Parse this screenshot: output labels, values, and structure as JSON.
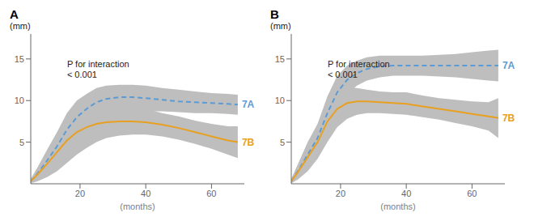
{
  "chart_data": [
    {
      "type": "line",
      "title": "A",
      "y_label": "(mm)",
      "x_label": "(months)",
      "annotation": "P for interaction\n< 0.001",
      "grid": false,
      "x": [
        5,
        7,
        10,
        13,
        16,
        19,
        22,
        25,
        28,
        32,
        36,
        40,
        45,
        50,
        55,
        60,
        65,
        68
      ],
      "xlim": [
        5,
        70
      ],
      "ylim": [
        0,
        18
      ],
      "xticks": [
        20,
        40,
        60
      ],
      "yticks": [
        5,
        10,
        15
      ],
      "series": [
        {
          "name": "7A",
          "color": "#5B9BD5",
          "line_style": "dashed",
          "ci_color": "#BEBEBE",
          "values": [
            0.3,
            1.2,
            2.8,
            4.5,
            6.5,
            8.0,
            9.0,
            9.8,
            10.2,
            10.4,
            10.4,
            10.3,
            10.1,
            9.9,
            9.8,
            9.7,
            9.6,
            9.5
          ],
          "ci_lo": [
            0.1,
            0.5,
            1.5,
            2.8,
            4.5,
            6.0,
            7.2,
            8.0,
            8.4,
            8.6,
            8.7,
            8.7,
            8.7,
            8.6,
            8.5,
            8.5,
            8.4,
            8.3
          ],
          "ci_hi": [
            0.5,
            1.9,
            4.1,
            6.2,
            8.5,
            10.0,
            10.8,
            11.5,
            11.8,
            11.9,
            11.9,
            11.8,
            11.5,
            11.3,
            11.1,
            10.9,
            10.8,
            10.7
          ]
        },
        {
          "name": "7B",
          "color": "#E8A020",
          "line_style": "solid",
          "ci_color": "#BEBEBE",
          "values": [
            0.3,
            1.1,
            2.4,
            3.8,
            5.2,
            6.2,
            6.8,
            7.2,
            7.4,
            7.5,
            7.5,
            7.4,
            7.1,
            6.7,
            6.2,
            5.7,
            5.2,
            5.0
          ],
          "ci_lo": [
            0.05,
            0.3,
            0.8,
            1.5,
            2.5,
            3.5,
            4.3,
            5.0,
            5.5,
            5.8,
            5.9,
            5.9,
            5.7,
            5.3,
            4.8,
            4.2,
            3.5,
            3.1
          ],
          "ci_hi": [
            0.6,
            1.9,
            4.0,
            6.1,
            7.9,
            8.9,
            9.3,
            9.4,
            9.3,
            9.2,
            9.1,
            9.0,
            8.5,
            8.1,
            7.6,
            7.2,
            6.9,
            6.9
          ]
        }
      ]
    },
    {
      "type": "line",
      "title": "B",
      "y_label": "(mm)",
      "x_label": "(months)",
      "annotation": "P for interaction\n< 0.001",
      "grid": false,
      "x": [
        5,
        7,
        10,
        13,
        16,
        19,
        22,
        25,
        28,
        32,
        36,
        40,
        45,
        50,
        55,
        60,
        65,
        68
      ],
      "xlim": [
        5,
        70
      ],
      "ylim": [
        0,
        18
      ],
      "xticks": [
        20,
        40,
        60
      ],
      "yticks": [
        5,
        10,
        15
      ],
      "series": [
        {
          "name": "7A",
          "color": "#5B9BD5",
          "line_style": "dashed",
          "ci_color": "#BEBEBE",
          "values": [
            0.3,
            1.5,
            3.5,
            5.5,
            8.5,
            11.0,
            12.5,
            13.3,
            13.8,
            14.1,
            14.2,
            14.2,
            14.2,
            14.2,
            14.2,
            14.2,
            14.2,
            14.2
          ],
          "ci_lo": [
            0.1,
            0.7,
            2.0,
            3.8,
            6.5,
            9.0,
            10.8,
            11.8,
            12.4,
            12.8,
            13.0,
            13.0,
            13.0,
            12.9,
            12.8,
            12.6,
            12.4,
            12.3
          ],
          "ci_hi": [
            0.5,
            2.3,
            5.0,
            7.2,
            10.5,
            13.0,
            14.2,
            14.8,
            15.2,
            15.4,
            15.4,
            15.4,
            15.4,
            15.5,
            15.6,
            15.8,
            16.0,
            16.1
          ]
        },
        {
          "name": "7B",
          "color": "#E8A020",
          "line_style": "solid",
          "ci_color": "#BEBEBE",
          "values": [
            0.3,
            1.4,
            3.2,
            5.0,
            7.5,
            9.0,
            9.7,
            9.9,
            9.9,
            9.8,
            9.7,
            9.6,
            9.3,
            9.0,
            8.7,
            8.4,
            8.1,
            7.9
          ],
          "ci_lo": [
            0.05,
            0.5,
            1.5,
            3.0,
            5.0,
            6.8,
            7.8,
            8.3,
            8.5,
            8.5,
            8.4,
            8.3,
            8.0,
            7.7,
            7.3,
            6.9,
            6.4,
            5.5
          ],
          "ci_hi": [
            0.6,
            2.3,
            4.9,
            7.0,
            10.0,
            11.2,
            11.6,
            11.5,
            11.3,
            11.1,
            11.0,
            11.0,
            10.6,
            10.3,
            10.1,
            9.9,
            9.8,
            10.3
          ]
        }
      ]
    }
  ]
}
